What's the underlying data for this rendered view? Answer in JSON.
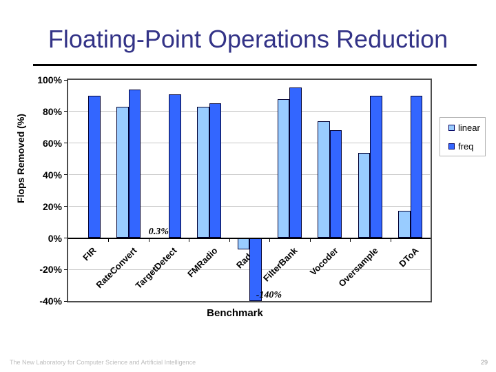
{
  "slide": {
    "title": "Floating-Point Operations Reduction",
    "title_color": "#333387",
    "footer": "The New Laboratory for Computer Science and Artificial Intelligence",
    "page_number": "29"
  },
  "chart_data": {
    "type": "bar",
    "title": "",
    "categories": [
      "FIR",
      "RateConvert",
      "TargetDetect",
      "FMRadio",
      "Radar",
      "FilterBank",
      "Vocoder",
      "Oversample",
      "DToA"
    ],
    "series": [
      {
        "name": "linear",
        "color": "#99CCFF",
        "values": [
          0,
          83,
          0.3,
          83,
          -7,
          88,
          74,
          54,
          17
        ]
      },
      {
        "name": "freq",
        "color": "#3366FF",
        "values": [
          90,
          94,
          91,
          85,
          -140,
          95,
          68,
          90,
          90
        ]
      }
    ],
    "xlabel": "Benchmark",
    "ylabel": "Flops Removed (%)",
    "ylim": [
      -40,
      100
    ],
    "ytick_step": 20,
    "ytick_labels": [
      "100%",
      "80%",
      "60%",
      "40%",
      "20%",
      "0%",
      "-20%",
      "-40%"
    ],
    "grid": true,
    "legend_position": "right",
    "bar_border_color": "#000033",
    "gridline_color": "#c6c6c6",
    "swatch_border_color": "#000060",
    "annotations": [
      {
        "series": "linear",
        "category": "TargetDetect",
        "text": "0.3%",
        "placement": "above_axis"
      },
      {
        "series": "freq",
        "category": "Radar",
        "text": "-140%",
        "placement": "below_clipped"
      }
    ]
  }
}
